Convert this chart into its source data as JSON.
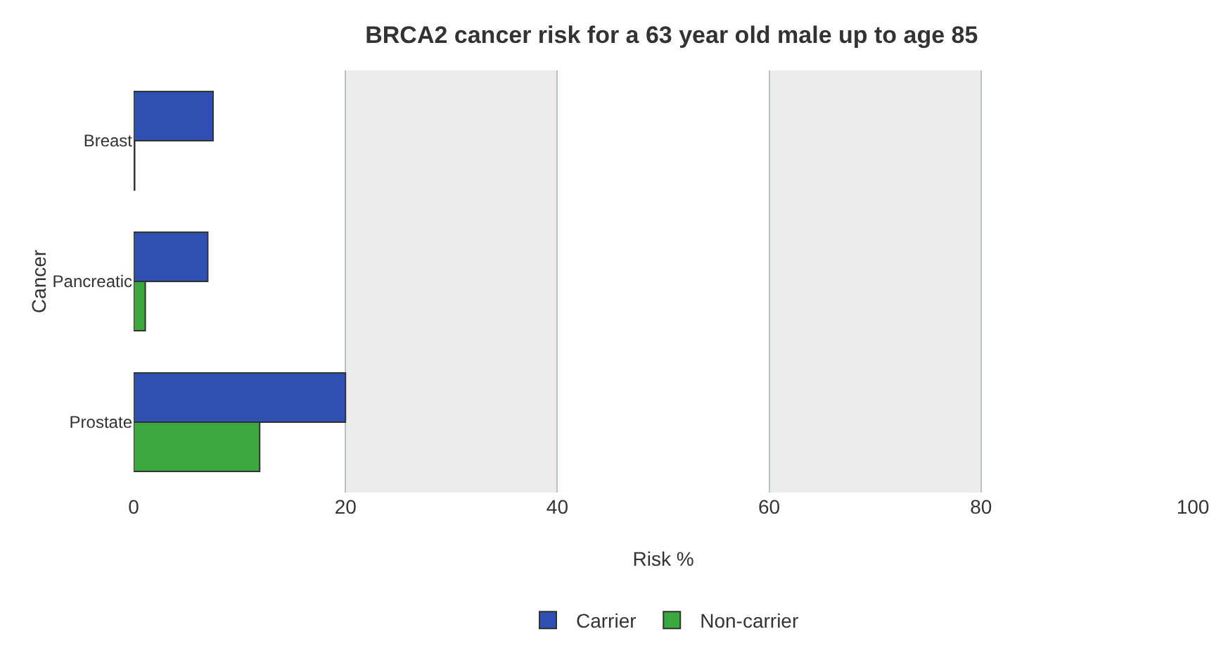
{
  "chart_data": {
    "type": "bar",
    "orientation": "horizontal",
    "title": "BRCA2 cancer risk for a 63 year old male up to age 85",
    "xlabel": "Risk %",
    "ylabel": "Cancer",
    "categories": [
      "Breast",
      "Pancreatic",
      "Prostate"
    ],
    "series": [
      {
        "name": "Carrier",
        "color": "#2e50b0",
        "values": [
          7.5,
          7.0,
          20
        ]
      },
      {
        "name": "Non-carrier",
        "color": "#3aa83e",
        "values": [
          0.1,
          1.1,
          11.9
        ]
      }
    ],
    "xlim": [
      0,
      100
    ],
    "xticks": [
      0,
      20,
      40,
      60,
      80,
      100
    ],
    "grid": "x",
    "legend": "bottom",
    "bands": [
      {
        "axis": "x",
        "from": 20,
        "to": 40,
        "color": "#ececec"
      },
      {
        "axis": "x",
        "from": 60,
        "to": 80,
        "color": "#ececec"
      }
    ]
  }
}
